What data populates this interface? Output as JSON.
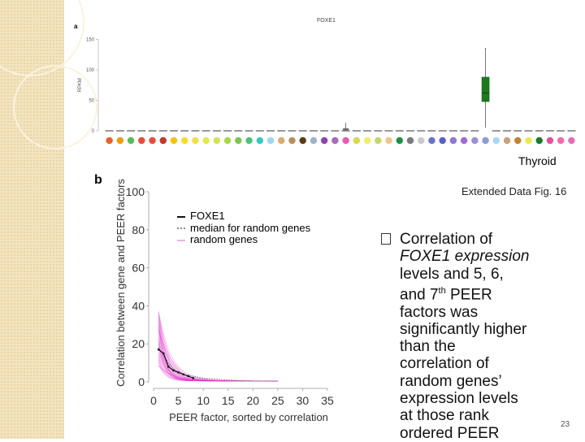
{
  "slide": {
    "tissue_label": "Thyroid",
    "caption": "Extended Data Fig. 16",
    "bullet": "Correlation of",
    "bullet_lines": [
      "FOXE1 expression",
      "levels and 5, 6,",
      "and 7",
      "th",
      " PEER",
      "factors was",
      "significantly higher",
      "than the",
      "correlation of",
      "random genes’",
      "expression levels",
      "at those rank",
      "ordered PEER"
    ],
    "page_number": "23"
  },
  "chart_data": [
    {
      "type": "boxplot",
      "panel": "a",
      "title": "FOXE1",
      "ylabel": "RPKM",
      "yticks": [
        0,
        50,
        100,
        150
      ],
      "ylim": [
        0,
        160
      ],
      "n_tissues": 44,
      "highlight_tissue": "Thyroid",
      "highlight_box": {
        "q1": 48,
        "median": 62,
        "q3": 88,
        "min": 5,
        "max": 135
      },
      "dot_colors": [
        "#e8622c",
        "#f39c12",
        "#5cb85c",
        "#e74c3c",
        "#e74c3c",
        "#c0392b",
        "#f1c40f",
        "#f7dc2b",
        "#f1e04a",
        "#e4e84c",
        "#d4e157",
        "#a5d64b",
        "#7cc552",
        "#4fbf7a",
        "#3bc6c1",
        "#9fd7f2",
        "#d6ad6e",
        "#b98f5a",
        "#5a3a1a",
        "#9fb3c8",
        "#8e44ad",
        "#a569bd",
        "#e85bb5",
        "#d7d84a",
        "#f2ed6b",
        "#c6d66a",
        "#f5c28a",
        "#1f8f4a",
        "#7a7a7a",
        "#c9c9c9",
        "#6a73c9",
        "#5b5fc7",
        "#8b78d6",
        "#a36ad3",
        "#9a8fd6",
        "#8e9bd6",
        "#a6d8f5",
        "#c8a27a",
        "#c0842d",
        "#e8eb4e",
        "#1b7a2c",
        "#e2509d",
        "#f16ca8",
        "#e26fb6"
      ]
    },
    {
      "type": "line",
      "panel": "b",
      "xlabel": "PEER factor, sorted by correlation",
      "ylabel": "Correlation between gene and PEER factors",
      "xticks": [
        0,
        5,
        10,
        15,
        20,
        25,
        30,
        35
      ],
      "yticks": [
        0,
        20,
        40,
        60,
        80,
        100
      ],
      "xlim": [
        0,
        35
      ],
      "ylim": [
        0,
        100
      ],
      "legend": [
        "FOXE1",
        "median for random genes",
        "random genes"
      ],
      "series": [
        {
          "name": "FOXE1",
          "x": [
            1,
            2,
            3,
            4,
            5,
            6,
            7,
            8
          ],
          "y": [
            17,
            15,
            8,
            6,
            5,
            4,
            3,
            2
          ]
        },
        {
          "name": "median for random genes",
          "x": [
            1,
            2,
            3,
            4,
            5,
            6,
            8,
            10,
            15,
            20,
            25
          ],
          "y": [
            18,
            14,
            10,
            7,
            5,
            4,
            3,
            2,
            1,
            0.5,
            0.3
          ]
        }
      ]
    }
  ]
}
